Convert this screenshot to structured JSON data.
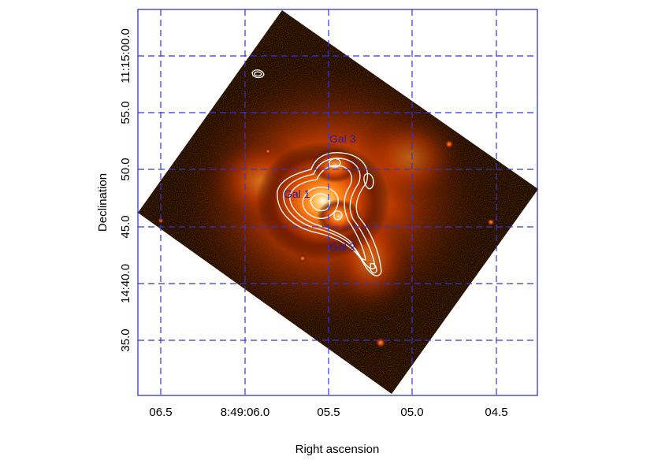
{
  "image": {
    "description_free": true,
    "colormap": [
      "#000000",
      "#3a0e00",
      "#a02a00",
      "#ff5a00",
      "#ff9a30",
      "#ffffff"
    ],
    "grid_color": "#3333dd",
    "frame_color": "#2222cc",
    "contour_color": "#ffffff",
    "annotation_color": "#2a1aa8"
  },
  "axes": {
    "xlabel": "Right ascension",
    "ylabel": "Declination",
    "x_ticks": [
      "06.5",
      "8:49:06.0",
      "05.5",
      "05.0",
      "04.5"
    ],
    "y_ticks": [
      "11:15:00.0",
      "55.0",
      "50.0",
      "45.0",
      "14:40.0",
      "35.0"
    ],
    "grid": true
  },
  "annotations": [
    "Gal 3",
    "Gal 1",
    "Gal 2"
  ]
}
